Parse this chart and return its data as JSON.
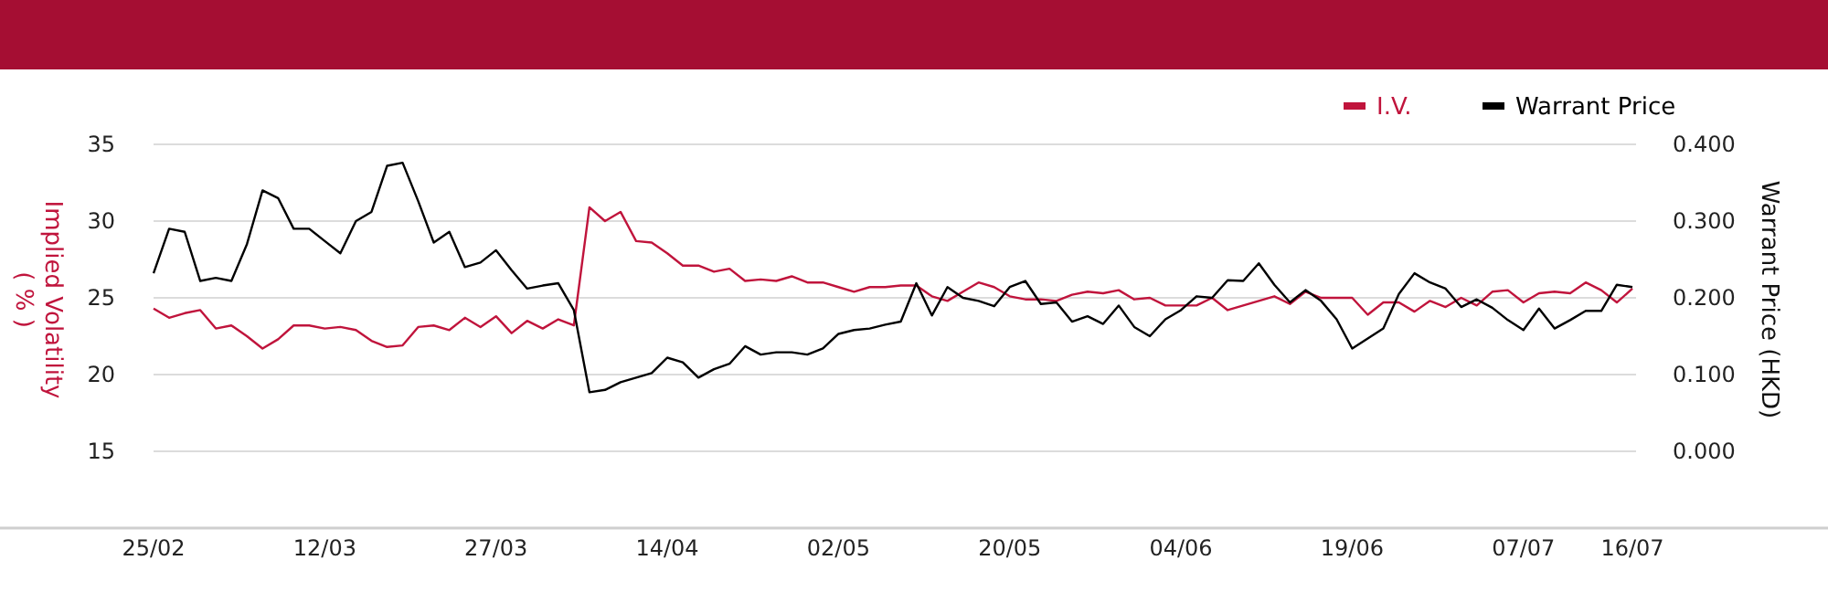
{
  "chart_data": {
    "type": "line",
    "categories": [
      "25/02",
      null,
      null,
      null,
      null,
      null,
      null,
      null,
      null,
      null,
      null,
      "12/03",
      null,
      null,
      null,
      null,
      null,
      null,
      null,
      null,
      null,
      null,
      "27/03",
      null,
      null,
      null,
      null,
      null,
      null,
      null,
      null,
      null,
      null,
      "14/04",
      null,
      null,
      null,
      null,
      null,
      null,
      null,
      null,
      null,
      null,
      "02/05",
      null,
      null,
      null,
      null,
      null,
      null,
      null,
      null,
      null,
      null,
      "20/05",
      null,
      null,
      null,
      null,
      null,
      null,
      null,
      null,
      null,
      null,
      "04/06",
      null,
      null,
      null,
      null,
      null,
      null,
      null,
      null,
      null,
      null,
      "19/06",
      null,
      null,
      null,
      null,
      null,
      null,
      null,
      null,
      null,
      null,
      "07/07",
      null,
      null,
      null,
      null,
      null,
      null,
      "16/07"
    ],
    "series": [
      {
        "name": "I.V.",
        "color": "#c0143c",
        "values": [
          24.3,
          23.7,
          24.0,
          24.2,
          23.0,
          23.2,
          22.5,
          21.7,
          22.3,
          23.2,
          23.2,
          23.0,
          23.1,
          22.9,
          22.2,
          21.8,
          21.9,
          23.1,
          23.2,
          22.9,
          23.7,
          23.1,
          23.8,
          22.7,
          23.5,
          23.0,
          23.6,
          23.2,
          30.9,
          30.0,
          30.6,
          28.7,
          28.6,
          27.9,
          27.1,
          27.1,
          26.7,
          26.9,
          26.1,
          26.2,
          26.1,
          26.4,
          26.0,
          26.0,
          25.7,
          25.4,
          25.7,
          25.7,
          25.8,
          25.8,
          25.1,
          24.8,
          25.4,
          26.0,
          25.7,
          25.1,
          24.9,
          24.9,
          24.8,
          25.2,
          25.4,
          25.3,
          25.5,
          24.9,
          25.0,
          24.5,
          24.5,
          24.5,
          25.0,
          24.2,
          24.5,
          24.8,
          25.1,
          24.6,
          25.4,
          25.0,
          25.0,
          25.0,
          23.9,
          24.7,
          24.7,
          24.1,
          24.8,
          24.4,
          25.0,
          24.5,
          25.4,
          25.5,
          24.7,
          25.3,
          25.4,
          25.3,
          26.0,
          25.5,
          24.7,
          25.6
        ]
      },
      {
        "name": "Warrant Price",
        "color": "#000000",
        "axis": "y2",
        "values": [
          0.232,
          0.29,
          0.286,
          0.222,
          0.226,
          0.222,
          0.27,
          0.34,
          0.33,
          0.29,
          0.29,
          0.274,
          0.258,
          0.3,
          0.312,
          0.372,
          0.376,
          0.326,
          0.272,
          0.286,
          0.24,
          0.246,
          0.262,
          0.236,
          0.212,
          0.216,
          0.219,
          0.184,
          0.077,
          0.08,
          0.09,
          0.096,
          0.102,
          0.122,
          0.116,
          0.096,
          0.107,
          0.114,
          0.137,
          0.126,
          0.129,
          0.129,
          0.126,
          0.134,
          0.153,
          0.158,
          0.16,
          0.165,
          0.169,
          0.219,
          0.177,
          0.214,
          0.2,
          0.196,
          0.189,
          0.214,
          0.222,
          0.192,
          0.194,
          0.169,
          0.176,
          0.166,
          0.19,
          0.162,
          0.15,
          0.172,
          0.184,
          0.202,
          0.2,
          0.223,
          0.222,
          0.245,
          0.217,
          0.194,
          0.21,
          0.196,
          0.172,
          0.134,
          0.147,
          0.16,
          0.205,
          0.232,
          0.22,
          0.212,
          0.188,
          0.198,
          0.187,
          0.171,
          0.158,
          0.186,
          0.16,
          0.171,
          0.183,
          0.183,
          0.217,
          0.214
        ]
      }
    ],
    "ylabel": "Implied Volatility\n( % )",
    "y2label": "Warrant Price (HKD)",
    "ylim": [
      10,
      35
    ],
    "yticks": [
      15,
      20,
      25,
      30,
      35
    ],
    "y2lim": [
      -0.1,
      0.4
    ],
    "y2ticks": [
      {
        "value": 0,
        "label": "0.000"
      },
      {
        "value": 0.1,
        "label": "0.100"
      },
      {
        "value": 0.2,
        "label": "0.200"
      },
      {
        "value": 0.3,
        "label": "0.300"
      },
      {
        "value": 0.4,
        "label": "0.400"
      }
    ],
    "grid": "y",
    "legend": "top right",
    "marker": "none",
    "line_style": "solid"
  }
}
